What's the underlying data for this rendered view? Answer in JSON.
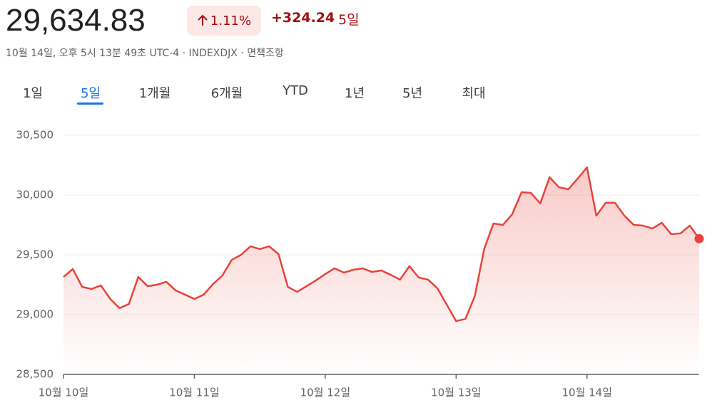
{
  "header": {
    "price": "29,634.83",
    "change_pct": "1.11%",
    "change_abs": "+324.24",
    "period": "5일",
    "subtitle": "10월 14일, 오후 5시 13분 49초 UTC-4 · INDEXDJX · 면책조항",
    "tabs": [
      "1일",
      "5일",
      "1개월",
      "6개월",
      "YTD",
      "1년",
      "5년",
      "최대"
    ]
  },
  "chart_data": {
    "type": "line",
    "color": "#e8433a",
    "grid": true,
    "values": [
      29315,
      29381,
      29232,
      29214,
      29244,
      29131,
      29054,
      29089,
      29315,
      29238,
      29250,
      29274,
      29202,
      29167,
      29131,
      29167,
      29256,
      29327,
      29458,
      29500,
      29571,
      29548,
      29571,
      29506,
      29232,
      29190,
      29238,
      29286,
      29339,
      29387,
      29351,
      29375,
      29387,
      29357,
      29369,
      29333,
      29292,
      29405,
      29310,
      29292,
      29220,
      29083,
      28946,
      28964,
      29155,
      29548,
      29762,
      29750,
      29839,
      30024,
      30018,
      29929,
      30149,
      30065,
      30048,
      30137,
      30232,
      29827,
      29935,
      29935,
      29827,
      29750,
      29744,
      29720,
      29768,
      29673,
      29679,
      29744,
      29635
    ],
    "xlim": [
      0,
      68
    ],
    "xticks": [
      {
        "value": 0,
        "label": "10월 10일"
      },
      {
        "value": 14,
        "label": "10월 11일"
      },
      {
        "value": 28,
        "label": "10월 12일"
      },
      {
        "value": 42,
        "label": "10월 13일"
      },
      {
        "value": 56,
        "label": "10월 14일"
      }
    ],
    "ylim": [
      28500,
      30500
    ],
    "yticks": [
      {
        "value": 28500,
        "label": "28,500"
      },
      {
        "value": 29000,
        "label": "29,000"
      },
      {
        "value": 29500,
        "label": "29,500"
      },
      {
        "value": 30000,
        "label": "30,000"
      },
      {
        "value": 30500,
        "label": "30,500"
      }
    ]
  }
}
